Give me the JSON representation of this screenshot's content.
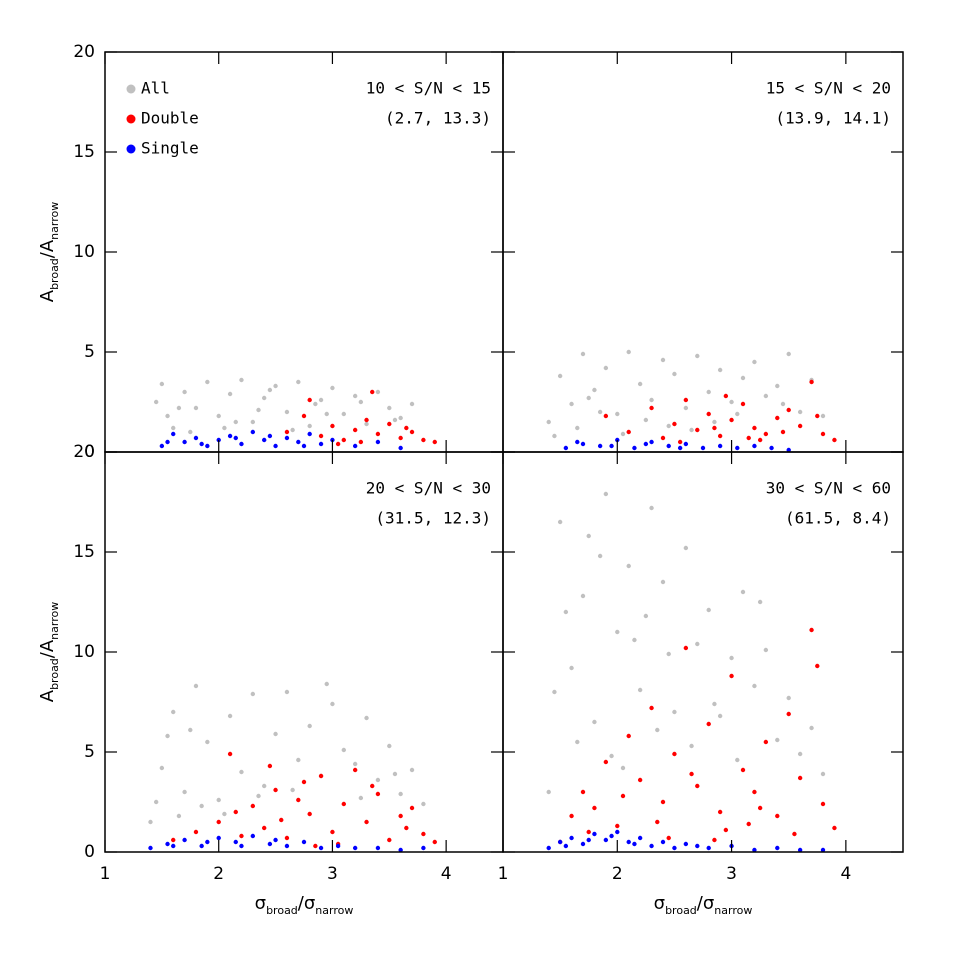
{
  "chart_data": [
    {
      "type": "scatter",
      "annotation": "10 < S/N < 15",
      "annotation2": "(2.7, 13.3)",
      "ylabel": [
        "A",
        "broad",
        "/A",
        "narrow"
      ],
      "xlim": [
        1,
        4.5
      ],
      "ylim": [
        0,
        20
      ],
      "xticks": [
        1,
        2,
        3,
        4
      ],
      "yticks": [
        0,
        5,
        10,
        15,
        20
      ],
      "series": [
        {
          "name": "All",
          "color": "#c0c0c0",
          "x": [
            1.45,
            1.5,
            1.6,
            1.7,
            1.8,
            1.9,
            2.0,
            2.1,
            2.2,
            2.3,
            2.4,
            2.5,
            2.6,
            2.7,
            2.8,
            2.9,
            3.0,
            3.1,
            3.2,
            3.3,
            3.4,
            3.5,
            3.6,
            3.7,
            1.55,
            1.75,
            2.05,
            2.35,
            2.65,
            2.95,
            3.25,
            3.55,
            1.65,
            2.15,
            2.45,
            2.85
          ],
          "values": [
            2.5,
            3.4,
            1.2,
            3.0,
            2.2,
            3.5,
            1.8,
            2.9,
            3.6,
            1.5,
            2.7,
            3.3,
            2.0,
            3.5,
            1.3,
            2.6,
            3.2,
            1.9,
            2.8,
            1.4,
            3.0,
            2.2,
            1.7,
            2.4,
            1.8,
            1.0,
            1.2,
            2.1,
            1.1,
            1.9,
            2.5,
            1.6,
            2.2,
            1.5,
            3.1,
            2.4
          ]
        },
        {
          "name": "Double",
          "color": "#ff0000",
          "x": [
            2.6,
            2.8,
            2.9,
            3.0,
            3.1,
            3.2,
            3.3,
            3.4,
            3.5,
            3.6,
            3.7,
            3.8,
            3.9,
            2.75,
            3.05,
            3.35,
            3.65,
            3.25
          ],
          "values": [
            1.0,
            2.6,
            0.8,
            1.3,
            0.6,
            1.1,
            1.6,
            0.9,
            1.4,
            0.7,
            1.0,
            0.6,
            0.5,
            1.8,
            0.4,
            3.0,
            1.2,
            0.5
          ]
        },
        {
          "name": "Single",
          "color": "#0000ff",
          "x": [
            1.5,
            1.6,
            1.7,
            1.8,
            1.9,
            2.0,
            2.1,
            2.2,
            2.3,
            2.4,
            2.5,
            2.6,
            2.7,
            2.8,
            2.9,
            3.0,
            3.2,
            3.4,
            3.6,
            1.55,
            1.85,
            2.15,
            2.45,
            2.75
          ],
          "values": [
            0.3,
            0.9,
            0.5,
            0.7,
            0.3,
            0.6,
            0.8,
            0.4,
            1.0,
            0.6,
            0.3,
            0.7,
            0.5,
            0.9,
            0.4,
            0.6,
            0.3,
            0.5,
            0.2,
            0.5,
            0.4,
            0.7,
            0.8,
            0.3
          ]
        }
      ]
    },
    {
      "type": "scatter",
      "annotation": "15 < S/N < 20",
      "annotation2": "(13.9, 14.1)",
      "xlim": [
        1,
        4.5
      ],
      "ylim": [
        0,
        20
      ],
      "xticks": [
        1,
        2,
        3,
        4
      ],
      "yticks": [
        0,
        5,
        10,
        15,
        20
      ],
      "series": [
        {
          "color": "#c0c0c0",
          "x": [
            1.4,
            1.5,
            1.6,
            1.7,
            1.8,
            1.9,
            2.0,
            2.1,
            2.2,
            2.3,
            2.4,
            2.5,
            2.6,
            2.7,
            2.8,
            2.9,
            3.0,
            3.1,
            3.2,
            3.3,
            3.4,
            3.5,
            3.6,
            3.7,
            3.8,
            1.45,
            1.65,
            1.85,
            2.05,
            2.25,
            2.45,
            2.65,
            2.85,
            3.05,
            3.45,
            1.75
          ],
          "values": [
            1.5,
            3.8,
            2.4,
            4.9,
            3.1,
            4.2,
            1.9,
            5.0,
            3.4,
            2.6,
            4.6,
            3.9,
            2.2,
            4.8,
            3.0,
            4.1,
            2.5,
            3.7,
            4.5,
            2.8,
            3.3,
            4.9,
            2.0,
            3.6,
            1.8,
            0.8,
            1.2,
            2.0,
            0.9,
            1.6,
            1.3,
            1.1,
            1.5,
            1.9,
            2.4,
            2.7
          ]
        },
        {
          "color": "#ff0000",
          "x": [
            1.9,
            2.1,
            2.3,
            2.4,
            2.5,
            2.6,
            2.7,
            2.8,
            2.9,
            3.0,
            3.1,
            3.2,
            3.3,
            3.4,
            3.5,
            3.6,
            3.7,
            3.8,
            3.9,
            2.55,
            2.85,
            3.15,
            3.45,
            3.75,
            2.95,
            3.25
          ],
          "values": [
            1.8,
            1.0,
            2.2,
            0.7,
            1.4,
            2.6,
            1.1,
            1.9,
            0.8,
            1.6,
            2.4,
            1.2,
            0.9,
            1.7,
            2.1,
            1.3,
            3.5,
            0.9,
            0.6,
            0.5,
            1.2,
            0.7,
            1.0,
            1.8,
            2.8,
            0.6
          ]
        },
        {
          "color": "#0000ff",
          "x": [
            1.55,
            1.7,
            1.85,
            2.0,
            2.15,
            2.3,
            2.45,
            2.6,
            2.75,
            2.9,
            3.05,
            3.2,
            3.35,
            3.5,
            1.65,
            1.95,
            2.25,
            2.55
          ],
          "values": [
            0.2,
            0.4,
            0.3,
            0.6,
            0.2,
            0.5,
            0.3,
            0.4,
            0.2,
            0.3,
            0.2,
            0.3,
            0.2,
            0.1,
            0.5,
            0.3,
            0.4,
            0.2
          ]
        }
      ]
    },
    {
      "type": "scatter",
      "annotation": "20 < S/N < 30",
      "annotation2": "(31.5, 12.3)",
      "xlabel": [
        "σ",
        "broad",
        "/σ",
        "narrow"
      ],
      "ylabel": [
        "A",
        "broad",
        "/A",
        "narrow"
      ],
      "xlim": [
        1,
        4.5
      ],
      "ylim": [
        0,
        20
      ],
      "xticks": [
        1,
        2,
        3,
        4
      ],
      "yticks": [
        0,
        5,
        10,
        15,
        20
      ],
      "series": [
        {
          "color": "#c0c0c0",
          "x": [
            1.4,
            1.5,
            1.6,
            1.7,
            1.8,
            1.9,
            2.0,
            2.1,
            2.2,
            2.3,
            2.4,
            2.5,
            2.6,
            2.7,
            2.8,
            2.9,
            3.0,
            3.1,
            3.2,
            3.3,
            3.4,
            3.5,
            3.6,
            3.7,
            3.8,
            1.45,
            1.55,
            1.65,
            1.75,
            1.85,
            2.05,
            2.35,
            2.65,
            2.95,
            3.25,
            3.55
          ],
          "values": [
            1.5,
            4.2,
            7.0,
            3.0,
            8.3,
            5.5,
            2.6,
            6.8,
            4.0,
            7.9,
            3.3,
            5.9,
            8.0,
            4.6,
            6.3,
            3.8,
            7.4,
            5.1,
            4.4,
            6.7,
            3.6,
            5.3,
            2.9,
            4.1,
            2.4,
            2.5,
            5.8,
            1.8,
            6.1,
            2.3,
            1.9,
            2.8,
            3.1,
            8.4,
            2.7,
            3.9
          ]
        },
        {
          "color": "#ff0000",
          "x": [
            1.6,
            1.8,
            2.0,
            2.1,
            2.2,
            2.3,
            2.4,
            2.5,
            2.6,
            2.7,
            2.8,
            2.9,
            3.0,
            3.1,
            3.2,
            3.3,
            3.4,
            3.5,
            3.6,
            3.7,
            3.8,
            3.9,
            2.45,
            2.75,
            3.05,
            3.35,
            3.65,
            2.15,
            2.55,
            2.85
          ],
          "values": [
            0.6,
            1.0,
            1.5,
            4.9,
            0.8,
            2.3,
            1.2,
            3.1,
            0.7,
            2.6,
            1.9,
            3.8,
            1.0,
            2.4,
            4.1,
            1.5,
            2.9,
            0.6,
            1.8,
            2.2,
            0.9,
            0.5,
            4.3,
            3.5,
            0.4,
            3.3,
            1.2,
            2.0,
            1.6,
            0.3
          ]
        },
        {
          "color": "#0000ff",
          "x": [
            1.4,
            1.55,
            1.7,
            1.85,
            2.0,
            2.15,
            2.3,
            2.45,
            2.6,
            2.75,
            2.9,
            3.05,
            3.2,
            3.4,
            3.6,
            3.8,
            1.6,
            1.9,
            2.2,
            2.5
          ],
          "values": [
            0.2,
            0.4,
            0.6,
            0.3,
            0.7,
            0.5,
            0.8,
            0.4,
            0.3,
            0.5,
            0.2,
            0.3,
            0.2,
            0.2,
            0.1,
            0.2,
            0.3,
            0.5,
            0.3,
            0.6
          ]
        }
      ]
    },
    {
      "type": "scatter",
      "annotation": "30 < S/N < 60",
      "annotation2": "(61.5, 8.4)",
      "xlabel": [
        "σ",
        "broad",
        "/σ",
        "narrow"
      ],
      "xlim": [
        1,
        4.5
      ],
      "ylim": [
        0,
        20
      ],
      "xticks": [
        1,
        2,
        3,
        4
      ],
      "yticks": [
        0,
        5,
        10,
        15,
        20
      ],
      "series": [
        {
          "color": "#c0c0c0",
          "x": [
            1.4,
            1.5,
            1.6,
            1.7,
            1.8,
            1.9,
            2.0,
            2.1,
            2.2,
            2.3,
            2.4,
            2.5,
            2.6,
            2.7,
            2.8,
            2.9,
            3.0,
            3.1,
            3.2,
            3.3,
            3.4,
            3.5,
            3.6,
            3.7,
            3.8,
            1.45,
            1.65,
            1.85,
            2.05,
            2.25,
            2.45,
            2.65,
            2.85,
            3.05,
            3.25,
            1.55,
            1.75,
            1.95,
            2.15,
            2.35
          ],
          "values": [
            3.0,
            16.5,
            9.2,
            12.8,
            6.5,
            17.9,
            11.0,
            14.3,
            8.1,
            17.2,
            13.5,
            7.0,
            15.2,
            10.4,
            12.1,
            6.8,
            9.7,
            13.0,
            8.3,
            10.1,
            5.6,
            7.7,
            4.9,
            6.2,
            3.9,
            8.0,
            5.5,
            14.8,
            4.2,
            11.8,
            9.9,
            5.3,
            7.4,
            4.6,
            12.5,
            12.0,
            15.8,
            4.8,
            10.6,
            6.1
          ]
        },
        {
          "color": "#ff0000",
          "x": [
            1.5,
            1.6,
            1.7,
            1.8,
            1.9,
            2.0,
            2.1,
            2.2,
            2.3,
            2.4,
            2.5,
            2.6,
            2.7,
            2.8,
            2.9,
            3.0,
            3.1,
            3.2,
            3.3,
            3.4,
            3.5,
            3.6,
            3.7,
            3.8,
            3.9,
            1.75,
            2.05,
            2.35,
            2.65,
            2.95,
            3.25,
            3.55,
            3.75,
            2.45,
            2.85,
            3.15
          ],
          "values": [
            0.5,
            1.8,
            3.0,
            2.2,
            4.5,
            1.3,
            5.8,
            3.6,
            7.2,
            2.5,
            4.9,
            10.2,
            3.3,
            6.4,
            2.0,
            8.8,
            4.1,
            3.0,
            5.5,
            1.8,
            6.9,
            3.7,
            11.1,
            2.4,
            1.2,
            1.0,
            2.8,
            1.5,
            3.9,
            1.1,
            2.2,
            0.9,
            9.3,
            0.7,
            0.6,
            1.4
          ]
        },
        {
          "color": "#0000ff",
          "x": [
            1.4,
            1.5,
            1.6,
            1.7,
            1.8,
            1.9,
            2.0,
            2.1,
            2.2,
            2.3,
            2.4,
            2.5,
            2.6,
            2.8,
            3.0,
            3.2,
            3.4,
            3.6,
            3.8,
            1.55,
            1.75,
            1.95,
            2.15,
            2.7
          ],
          "values": [
            0.2,
            0.5,
            0.7,
            0.4,
            0.9,
            0.6,
            1.0,
            0.5,
            0.7,
            0.3,
            0.5,
            0.2,
            0.4,
            0.2,
            0.3,
            0.1,
            0.2,
            0.1,
            0.1,
            0.3,
            0.6,
            0.8,
            0.4,
            0.3
          ]
        }
      ]
    }
  ]
}
